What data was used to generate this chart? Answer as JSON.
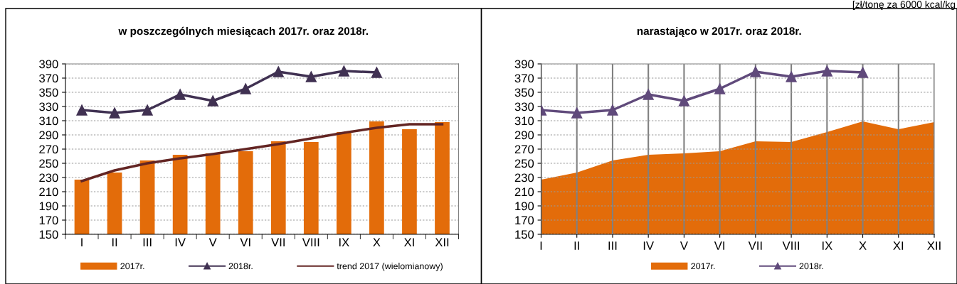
{
  "chart_data": [
    {
      "type": "bar",
      "title": "w poszczególnych miesiącach 2017r. oraz 2018r.",
      "categories": [
        "I",
        "II",
        "III",
        "IV",
        "V",
        "VI",
        "VII",
        "VIII",
        "IX",
        "X",
        "XI",
        "XII"
      ],
      "series": [
        {
          "name": "2017r.",
          "type": "bar",
          "color": "#e36c0a",
          "values": [
            227,
            237,
            254,
            262,
            264,
            267,
            281,
            280,
            294,
            309,
            298,
            308
          ]
        },
        {
          "name": "2018r.",
          "type": "line",
          "color": "#403152",
          "marker": "triangle",
          "values": [
            325,
            321,
            325,
            347,
            338,
            355,
            379,
            372,
            380,
            378,
            null,
            null
          ]
        },
        {
          "name": "trend 2017 (wielomianowy)",
          "type": "line",
          "color": "#632523",
          "values": [
            225,
            240,
            250,
            257,
            263,
            270,
            277,
            285,
            293,
            300,
            305,
            305
          ]
        }
      ],
      "ylim": [
        150,
        390
      ],
      "yticks": [
        150,
        170,
        190,
        210,
        230,
        250,
        270,
        290,
        310,
        330,
        350,
        370,
        390
      ],
      "grid": "y",
      "legend": "bottom",
      "line_style": "solid"
    },
    {
      "type": "area",
      "title": "narastająco w 2017r. oraz 2018r.",
      "categories": [
        "I",
        "II",
        "III",
        "IV",
        "V",
        "VI",
        "VII",
        "VIII",
        "IX",
        "X",
        "XI",
        "XII"
      ],
      "series": [
        {
          "name": "2017r.",
          "type": "area",
          "color": "#e36c0a",
          "values": [
            227,
            237,
            254,
            262,
            264,
            267,
            281,
            280,
            294,
            309,
            298,
            308
          ]
        },
        {
          "name": "2018r.",
          "type": "line",
          "color": "#604a7b",
          "marker": "triangle",
          "values": [
            325,
            321,
            325,
            347,
            338,
            355,
            379,
            372,
            380,
            378,
            null,
            null
          ]
        }
      ],
      "ylim": [
        150,
        390
      ],
      "yticks": [
        150,
        170,
        190,
        210,
        230,
        250,
        270,
        290,
        310,
        330,
        350,
        370,
        390
      ],
      "grid": true,
      "legend": "bottom",
      "line_style": "solid",
      "annotations": [
        "[zł/tonę za 6000 kcal/kg"
      ]
    }
  ]
}
